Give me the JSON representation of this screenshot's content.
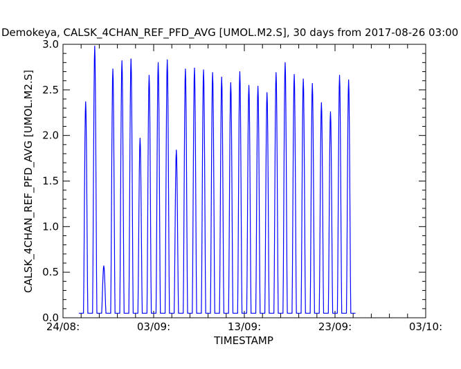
{
  "chart_data": {
    "type": "line",
    "title": "Demokeya, CALSK_4CHAN_REF_PFD_AVG [UMOL.M2.S], 30 days from  2017-08-26 03:00",
    "xlabel": "TIMESTAMP",
    "ylabel": "CALSK_4CHAN_REF_PFD_AVG [UMOL.M2.S]",
    "xlim": [
      "2017-08-24",
      "2017-10-03"
    ],
    "ylim": [
      0,
      3.0
    ],
    "x_ticks": [
      {
        "date": "2017-08-24",
        "label": "24/08:"
      },
      {
        "date": "2017-09-03",
        "label": "03/09:"
      },
      {
        "date": "2017-09-13",
        "label": "13/09:"
      },
      {
        "date": "2017-09-23",
        "label": "23/09:"
      },
      {
        "date": "2017-10-03",
        "label": "03/10:"
      }
    ],
    "y_ticks": [
      "0.0",
      "0.5",
      "1.0",
      "1.5",
      "2.0",
      "2.5",
      "3.0"
    ],
    "line_color": "#0000ff",
    "grid": false,
    "night_value": 0.05,
    "series": [
      {
        "name": "",
        "daily_peaks": [
          {
            "date": "2017-08-26",
            "peak": 2.37
          },
          {
            "date": "2017-08-27",
            "peak": 2.98
          },
          {
            "date": "2017-08-28",
            "peak": 0.57
          },
          {
            "date": "2017-08-29",
            "peak": 2.73
          },
          {
            "date": "2017-08-30",
            "peak": 2.82
          },
          {
            "date": "2017-08-31",
            "peak": 2.84
          },
          {
            "date": "2017-09-01",
            "peak": 1.97
          },
          {
            "date": "2017-09-02",
            "peak": 2.66
          },
          {
            "date": "2017-09-03",
            "peak": 2.8
          },
          {
            "date": "2017-09-04",
            "peak": 2.83
          },
          {
            "date": "2017-09-05",
            "peak": 1.84
          },
          {
            "date": "2017-09-06",
            "peak": 2.73
          },
          {
            "date": "2017-09-07",
            "peak": 2.74
          },
          {
            "date": "2017-09-08",
            "peak": 2.72
          },
          {
            "date": "2017-09-09",
            "peak": 2.69
          },
          {
            "date": "2017-09-10",
            "peak": 2.64
          },
          {
            "date": "2017-09-11",
            "peak": 2.58
          },
          {
            "date": "2017-09-12",
            "peak": 2.7
          },
          {
            "date": "2017-09-13",
            "peak": 2.55
          },
          {
            "date": "2017-09-14",
            "peak": 2.54
          },
          {
            "date": "2017-09-15",
            "peak": 2.47
          },
          {
            "date": "2017-09-16",
            "peak": 2.69
          },
          {
            "date": "2017-09-17",
            "peak": 2.8
          },
          {
            "date": "2017-09-18",
            "peak": 2.67
          },
          {
            "date": "2017-09-19",
            "peak": 2.62
          },
          {
            "date": "2017-09-20",
            "peak": 2.57
          },
          {
            "date": "2017-09-21",
            "peak": 2.36
          },
          {
            "date": "2017-09-22",
            "peak": 2.26
          },
          {
            "date": "2017-09-23",
            "peak": 2.66
          },
          {
            "date": "2017-09-24",
            "peak": 2.61
          }
        ]
      }
    ]
  }
}
